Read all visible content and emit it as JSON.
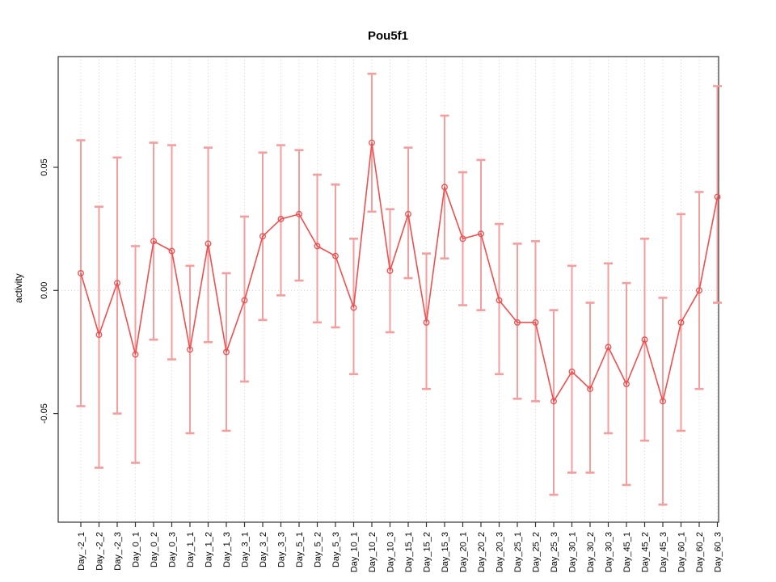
{
  "chart_data": {
    "type": "line",
    "title": "Pou5f1",
    "xlabel": "",
    "ylabel": "activity",
    "legend": "none",
    "grid": "vertical dotted gridlines at every category; dotted horizontal line at y=0",
    "marker": "open-circle",
    "error_bars": true,
    "ylim": [
      -0.094,
      0.095
    ],
    "y_ticks": [
      {
        "value": 0.05,
        "label": "0.05"
      },
      {
        "value": 0.0,
        "label": "0.00"
      },
      {
        "value": -0.05,
        "label": "-0.05"
      }
    ],
    "categories": [
      "Day_-2_1",
      "Day_-2_2",
      "Day_-2_3",
      "Day_0_1",
      "Day_0_2",
      "Day_0_3",
      "Day_1_1",
      "Day_1_2",
      "Day_1_3",
      "Day_3_1",
      "Day_3_2",
      "Day_3_3",
      "Day_5_1",
      "Day_5_2",
      "Day_5_3",
      "Day_10_1",
      "Day_10_2",
      "Day_10_3",
      "Day_15_1",
      "Day_15_2",
      "Day_15_3",
      "Day_20_1",
      "Day_20_2",
      "Day_20_3",
      "Day_25_1",
      "Day_25_2",
      "Day_25_3",
      "Day_30_1",
      "Day_30_2",
      "Day_30_3",
      "Day_45_1",
      "Day_45_2",
      "Day_45_3",
      "Day_60_1",
      "Day_60_2",
      "Day_60_3"
    ],
    "values": [
      0.007,
      -0.018,
      0.003,
      -0.026,
      0.02,
      0.016,
      -0.024,
      0.019,
      -0.025,
      -0.004,
      0.022,
      0.029,
      0.031,
      0.018,
      0.014,
      -0.007,
      0.06,
      0.008,
      0.031,
      -0.013,
      0.042,
      0.021,
      0.023,
      -0.004,
      -0.013,
      -0.013,
      -0.045,
      -0.033,
      -0.04,
      -0.023,
      -0.038,
      -0.02,
      -0.045,
      -0.013,
      0.0,
      0.038
    ],
    "err_hi": [
      0.061,
      0.034,
      0.054,
      0.018,
      0.06,
      0.059,
      0.01,
      0.058,
      0.007,
      0.03,
      0.056,
      0.059,
      0.057,
      0.047,
      0.043,
      0.021,
      0.088,
      0.033,
      0.058,
      0.015,
      0.071,
      0.048,
      0.053,
      0.027,
      0.019,
      0.02,
      -0.008,
      0.01,
      -0.005,
      0.011,
      0.003,
      0.021,
      -0.003,
      0.031,
      0.04,
      0.083
    ],
    "err_lo": [
      -0.047,
      -0.072,
      -0.05,
      -0.07,
      -0.02,
      -0.028,
      -0.058,
      -0.021,
      -0.057,
      -0.037,
      -0.012,
      -0.002,
      0.004,
      -0.013,
      -0.015,
      -0.034,
      0.032,
      -0.017,
      0.005,
      -0.04,
      0.013,
      -0.006,
      -0.008,
      -0.034,
      -0.044,
      -0.045,
      -0.083,
      -0.074,
      -0.074,
      -0.058,
      -0.079,
      -0.061,
      -0.087,
      -0.057,
      -0.04,
      -0.005
    ],
    "colors": {
      "series": "#ee4f4f",
      "error_bar": "#f49e9e",
      "grid": "#d8d8d8",
      "zero_line": "#cccccc",
      "box": "#333333",
      "tick": "#333333",
      "text": "#000000"
    }
  }
}
